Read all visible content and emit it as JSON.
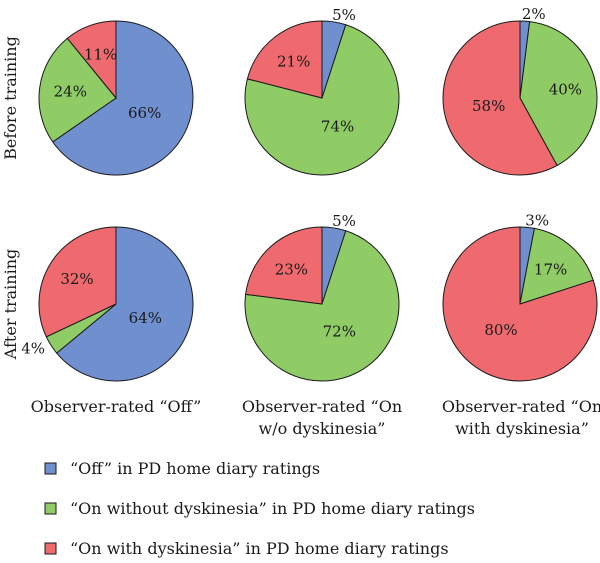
{
  "chart_data": {
    "type": "pie",
    "row_labels": [
      "Before training",
      "After training"
    ],
    "column_labels": [
      [
        "Observer-rated “Off”"
      ],
      [
        "Observer-rated “On",
        "w/o dyskinesia”"
      ],
      [
        "Observer-rated “On",
        "with dyskinesia”"
      ]
    ],
    "categories": [
      "“Off” in PD home diary ratings",
      "“On without dyskinesia” in PD home diary ratings",
      "“On with dyskinesia” in PD home diary ratings"
    ],
    "colors": [
      "#6f8fcf",
      "#8fcc66",
      "#ee6a6e"
    ],
    "pies": [
      {
        "row": 0,
        "col": 0,
        "values": [
          66,
          24,
          11
        ],
        "labels": [
          "66%",
          "24%",
          "11%"
        ]
      },
      {
        "row": 0,
        "col": 1,
        "values": [
          5,
          74,
          21
        ],
        "labels": [
          "5%",
          "74%",
          "21%"
        ]
      },
      {
        "row": 0,
        "col": 2,
        "values": [
          2,
          40,
          58
        ],
        "labels": [
          "2%",
          "40%",
          "58%"
        ]
      },
      {
        "row": 1,
        "col": 0,
        "values": [
          64,
          4,
          32
        ],
        "labels": [
          "64%",
          "4%",
          "32%"
        ]
      },
      {
        "row": 1,
        "col": 1,
        "values": [
          5,
          72,
          23
        ],
        "labels": [
          "5%",
          "72%",
          "23%"
        ]
      },
      {
        "row": 1,
        "col": 2,
        "values": [
          3,
          17,
          80
        ],
        "labels": [
          "3%",
          "17%",
          "80%"
        ]
      }
    ]
  }
}
